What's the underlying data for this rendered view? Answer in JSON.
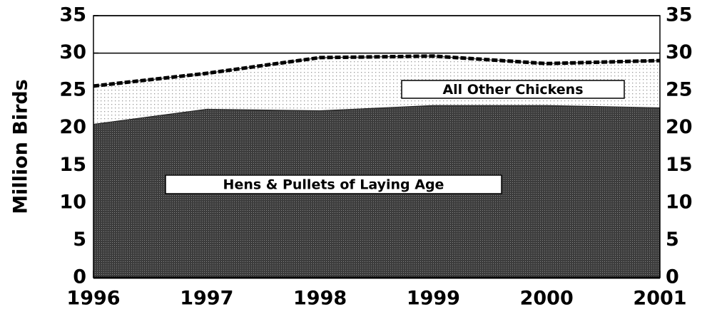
{
  "chart_data": {
    "type": "stacked_area",
    "y_label": "Million Birds",
    "x": [
      1996,
      1997,
      1998,
      1999,
      2000,
      2001
    ],
    "series": [
      {
        "name": "Hens & Pullets of Laying Age",
        "color": "#3c3c3c",
        "values": [
          20.5,
          22.5,
          22.3,
          23,
          23,
          22.7
        ]
      },
      {
        "name": "All Other Chickens",
        "color": "#9a9a9a",
        "values": [
          5.1,
          4.8,
          7.1,
          6.6,
          5.6,
          6.3
        ]
      }
    ],
    "xlim": [
      1996,
      2001
    ],
    "xticks": [
      1996,
      1997,
      1998,
      1999,
      2000,
      2001
    ],
    "ylim": [
      0,
      35
    ],
    "yticks": [
      0,
      5,
      10,
      15,
      20,
      25,
      30,
      35
    ],
    "grid": true
  }
}
